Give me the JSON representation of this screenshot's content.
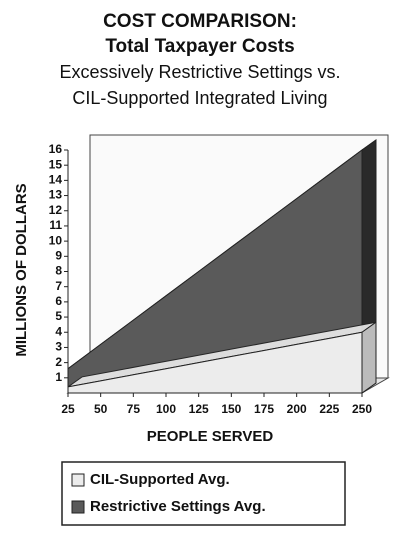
{
  "chart_data": {
    "type": "area3d",
    "title": [
      "COST COMPARISON:",
      "Total Taxpayer Costs",
      "Excessively Restrictive Settings vs.",
      "CIL-Supported Integrated Living"
    ],
    "x_label": "PEOPLE SERVED",
    "y_label": "MILLIONS OF DOLLARS",
    "x": [
      25,
      50,
      75,
      100,
      125,
      150,
      175,
      200,
      225,
      250
    ],
    "xlim": [
      25,
      250
    ],
    "xticks": [
      25,
      50,
      75,
      100,
      125,
      150,
      175,
      200,
      225,
      250
    ],
    "ylim": [
      0,
      16
    ],
    "yticks": [
      1,
      2,
      3,
      4,
      5,
      6,
      7,
      8,
      9,
      10,
      11,
      12,
      13,
      14,
      15,
      16
    ],
    "series": [
      {
        "name": "CIL-Supported Avg.",
        "color": "#ececec",
        "values": [
          0.4,
          0.8,
          1.2,
          1.6,
          2.0,
          2.4,
          2.8,
          3.2,
          3.6,
          4.0
        ]
      },
      {
        "name": "Restrictive Settings Avg.",
        "color": "#5a5a5a",
        "values": [
          1.6,
          3.2,
          4.8,
          6.4,
          8.0,
          9.6,
          11.2,
          12.8,
          14.4,
          16.0
        ]
      }
    ]
  }
}
